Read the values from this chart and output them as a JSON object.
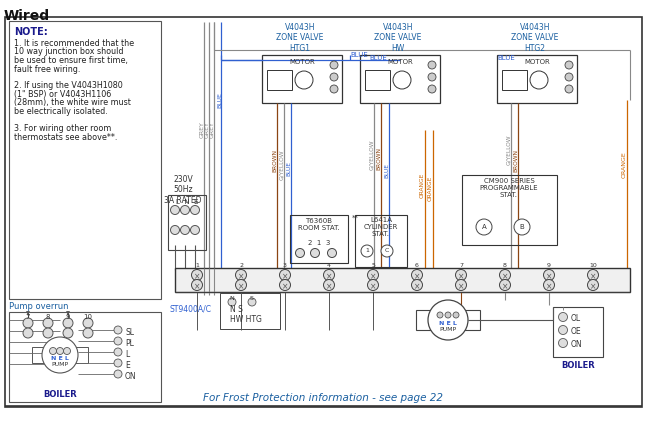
{
  "title": "Wired",
  "bg_color": "#ffffff",
  "note_text": "NOTE:",
  "note_color": "#1a1a8c",
  "note_lines": [
    "1. It is recommended that the",
    "10 way junction box should",
    "be used to ensure first time,",
    "fault free wiring.",
    "",
    "2. If using the V4043H1080",
    "(1\" BSP) or V4043H1106",
    "(28mm), the white wire must",
    "be electrically isolated.",
    "",
    "3. For wiring other room",
    "thermostats see above**."
  ],
  "pump_overrun_label": "Pump overrun",
  "frost_text": "For Frost Protection information - see page 22",
  "frost_color": "#1a5fa0",
  "valve_color": "#1a5fa0",
  "wire_grey": "#888888",
  "wire_blue": "#3060d0",
  "wire_brown": "#8B4513",
  "wire_orange": "#cc6600",
  "wire_gyellow": "#888888",
  "dark": "#222222",
  "mid": "#555555"
}
